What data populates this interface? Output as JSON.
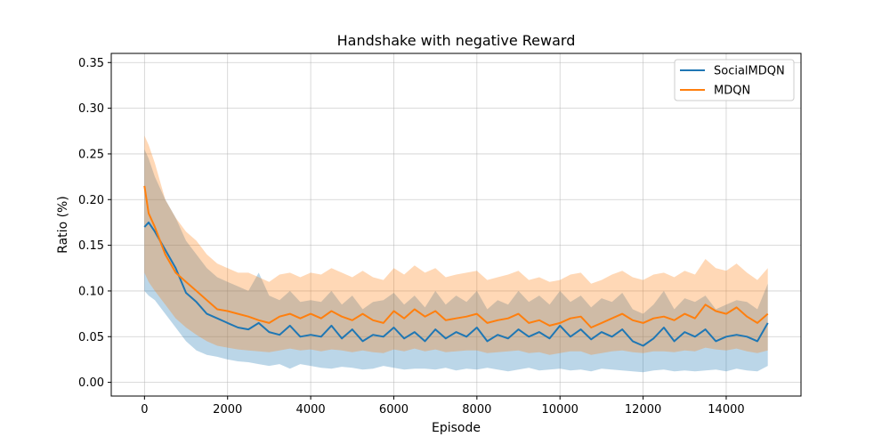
{
  "chart_data": {
    "type": "line",
    "title": "Handshake with negative Reward",
    "xlabel": "Episode",
    "ylabel": "Ratio (%)",
    "xlim": [
      -800,
      15800
    ],
    "ylim": [
      -0.015,
      0.36
    ],
    "grid": true,
    "legend_position": "top-right",
    "x_ticks": [
      0,
      2000,
      4000,
      6000,
      8000,
      10000,
      12000,
      14000
    ],
    "x_tick_labels": [
      "0",
      "2000",
      "4000",
      "6000",
      "8000",
      "10000",
      "12000",
      "14000"
    ],
    "y_ticks": [
      0.0,
      0.05,
      0.1,
      0.15,
      0.2,
      0.25,
      0.3,
      0.35
    ],
    "y_tick_labels": [
      "0.00",
      "0.05",
      "0.10",
      "0.15",
      "0.20",
      "0.25",
      "0.30",
      "0.35"
    ],
    "x": [
      0,
      100,
      250,
      500,
      750,
      1000,
      1250,
      1500,
      1750,
      2000,
      2250,
      2500,
      2750,
      3000,
      3250,
      3500,
      3750,
      4000,
      4250,
      4500,
      4750,
      5000,
      5250,
      5500,
      5750,
      6000,
      6250,
      6500,
      6750,
      7000,
      7250,
      7500,
      7750,
      8000,
      8250,
      8500,
      8750,
      9000,
      9250,
      9500,
      9750,
      10000,
      10250,
      10500,
      10750,
      11000,
      11250,
      11500,
      11750,
      12000,
      12250,
      12500,
      12750,
      13000,
      13250,
      13500,
      13750,
      14000,
      14250,
      14500,
      14750,
      15000
    ],
    "series": [
      {
        "name": "SocialMDQN",
        "color": "#1f77b4",
        "values": [
          0.17,
          0.175,
          0.165,
          0.145,
          0.125,
          0.098,
          0.088,
          0.075,
          0.07,
          0.065,
          0.06,
          0.058,
          0.065,
          0.055,
          0.052,
          0.062,
          0.05,
          0.052,
          0.05,
          0.062,
          0.048,
          0.058,
          0.045,
          0.052,
          0.05,
          0.06,
          0.048,
          0.055,
          0.045,
          0.058,
          0.048,
          0.055,
          0.05,
          0.06,
          0.045,
          0.052,
          0.048,
          0.058,
          0.05,
          0.055,
          0.048,
          0.062,
          0.05,
          0.058,
          0.047,
          0.055,
          0.05,
          0.058,
          0.045,
          0.04,
          0.048,
          0.06,
          0.045,
          0.055,
          0.05,
          0.058,
          0.045,
          0.05,
          0.052,
          0.05,
          0.045,
          0.065
        ],
        "lower": [
          0.1,
          0.095,
          0.09,
          0.075,
          0.06,
          0.045,
          0.035,
          0.03,
          0.028,
          0.025,
          0.023,
          0.022,
          0.02,
          0.018,
          0.02,
          0.015,
          0.02,
          0.018,
          0.016,
          0.015,
          0.017,
          0.016,
          0.014,
          0.015,
          0.018,
          0.016,
          0.014,
          0.015,
          0.015,
          0.014,
          0.016,
          0.013,
          0.015,
          0.014,
          0.016,
          0.014,
          0.012,
          0.014,
          0.016,
          0.013,
          0.014,
          0.015,
          0.013,
          0.014,
          0.012,
          0.015,
          0.014,
          0.013,
          0.012,
          0.011,
          0.013,
          0.014,
          0.012,
          0.013,
          0.012,
          0.013,
          0.014,
          0.012,
          0.015,
          0.013,
          0.012,
          0.018
        ],
        "upper": [
          0.255,
          0.245,
          0.225,
          0.2,
          0.18,
          0.155,
          0.14,
          0.125,
          0.115,
          0.11,
          0.105,
          0.1,
          0.12,
          0.095,
          0.09,
          0.1,
          0.088,
          0.09,
          0.088,
          0.1,
          0.085,
          0.095,
          0.08,
          0.088,
          0.09,
          0.098,
          0.085,
          0.095,
          0.082,
          0.1,
          0.085,
          0.095,
          0.088,
          0.1,
          0.08,
          0.09,
          0.085,
          0.1,
          0.088,
          0.095,
          0.085,
          0.1,
          0.088,
          0.095,
          0.082,
          0.092,
          0.088,
          0.098,
          0.08,
          0.075,
          0.085,
          0.1,
          0.08,
          0.092,
          0.088,
          0.095,
          0.08,
          0.085,
          0.09,
          0.088,
          0.08,
          0.108
        ]
      },
      {
        "name": "MDQN",
        "color": "#ff7f0e",
        "values": [
          0.215,
          0.185,
          0.17,
          0.14,
          0.12,
          0.11,
          0.1,
          0.09,
          0.08,
          0.078,
          0.075,
          0.072,
          0.068,
          0.065,
          0.072,
          0.075,
          0.07,
          0.075,
          0.07,
          0.078,
          0.072,
          0.068,
          0.075,
          0.068,
          0.065,
          0.078,
          0.07,
          0.08,
          0.072,
          0.078,
          0.068,
          0.07,
          0.072,
          0.075,
          0.065,
          0.068,
          0.07,
          0.075,
          0.065,
          0.068,
          0.062,
          0.065,
          0.07,
          0.072,
          0.06,
          0.065,
          0.07,
          0.075,
          0.068,
          0.065,
          0.07,
          0.072,
          0.068,
          0.075,
          0.07,
          0.085,
          0.078,
          0.075,
          0.082,
          0.072,
          0.065,
          0.075
        ],
        "lower": [
          0.12,
          0.11,
          0.1,
          0.085,
          0.07,
          0.06,
          0.052,
          0.045,
          0.04,
          0.038,
          0.036,
          0.035,
          0.034,
          0.033,
          0.035,
          0.037,
          0.035,
          0.036,
          0.034,
          0.036,
          0.035,
          0.033,
          0.035,
          0.033,
          0.032,
          0.036,
          0.034,
          0.037,
          0.034,
          0.036,
          0.033,
          0.034,
          0.035,
          0.035,
          0.032,
          0.033,
          0.034,
          0.035,
          0.032,
          0.033,
          0.03,
          0.032,
          0.034,
          0.034,
          0.03,
          0.032,
          0.034,
          0.035,
          0.033,
          0.032,
          0.034,
          0.034,
          0.033,
          0.035,
          0.034,
          0.038,
          0.036,
          0.035,
          0.037,
          0.034,
          0.032,
          0.035
        ],
        "upper": [
          0.27,
          0.26,
          0.24,
          0.2,
          0.18,
          0.165,
          0.155,
          0.14,
          0.13,
          0.125,
          0.12,
          0.12,
          0.115,
          0.11,
          0.118,
          0.12,
          0.115,
          0.12,
          0.118,
          0.125,
          0.12,
          0.115,
          0.122,
          0.115,
          0.112,
          0.125,
          0.118,
          0.128,
          0.12,
          0.125,
          0.115,
          0.118,
          0.12,
          0.122,
          0.112,
          0.115,
          0.118,
          0.122,
          0.112,
          0.115,
          0.11,
          0.112,
          0.118,
          0.12,
          0.108,
          0.112,
          0.118,
          0.122,
          0.115,
          0.112,
          0.118,
          0.12,
          0.115,
          0.122,
          0.118,
          0.135,
          0.125,
          0.122,
          0.13,
          0.12,
          0.112,
          0.125
        ]
      }
    ]
  }
}
